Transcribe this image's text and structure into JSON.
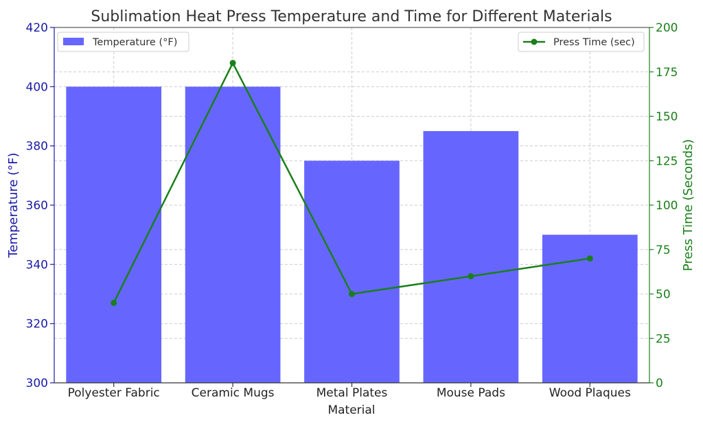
{
  "chart_data": {
    "type": "bar",
    "title": "Sublimation Heat Press Temperature and Time for Different Materials",
    "xlabel": "Material",
    "categories": [
      "Polyester Fabric",
      "Ceramic Mugs",
      "Metal Plates",
      "Mouse Pads",
      "Wood Plaques"
    ],
    "series": [
      {
        "name": "Temperature (°F)",
        "type": "bar",
        "axis": "left",
        "color": "#6666ff",
        "values": [
          400,
          400,
          375,
          385,
          350
        ]
      },
      {
        "name": "Press Time (sec)",
        "type": "line",
        "axis": "right",
        "color": "#1a7f1a",
        "values": [
          45,
          180,
          50,
          60,
          70
        ]
      }
    ],
    "y_left": {
      "label": "Temperature (°F)",
      "range": [
        300,
        420
      ],
      "ticks": [
        300,
        320,
        340,
        360,
        380,
        400,
        420
      ]
    },
    "y_right": {
      "label": "Press Time (Seconds)",
      "range": [
        0,
        200
      ],
      "ticks": [
        0,
        25,
        50,
        75,
        100,
        125,
        150,
        175,
        200
      ]
    },
    "grid": true,
    "legends": [
      {
        "label": "Temperature (°F)",
        "placement": "top-left"
      },
      {
        "label": "Press Time (sec)",
        "placement": "top-right"
      }
    ]
  }
}
